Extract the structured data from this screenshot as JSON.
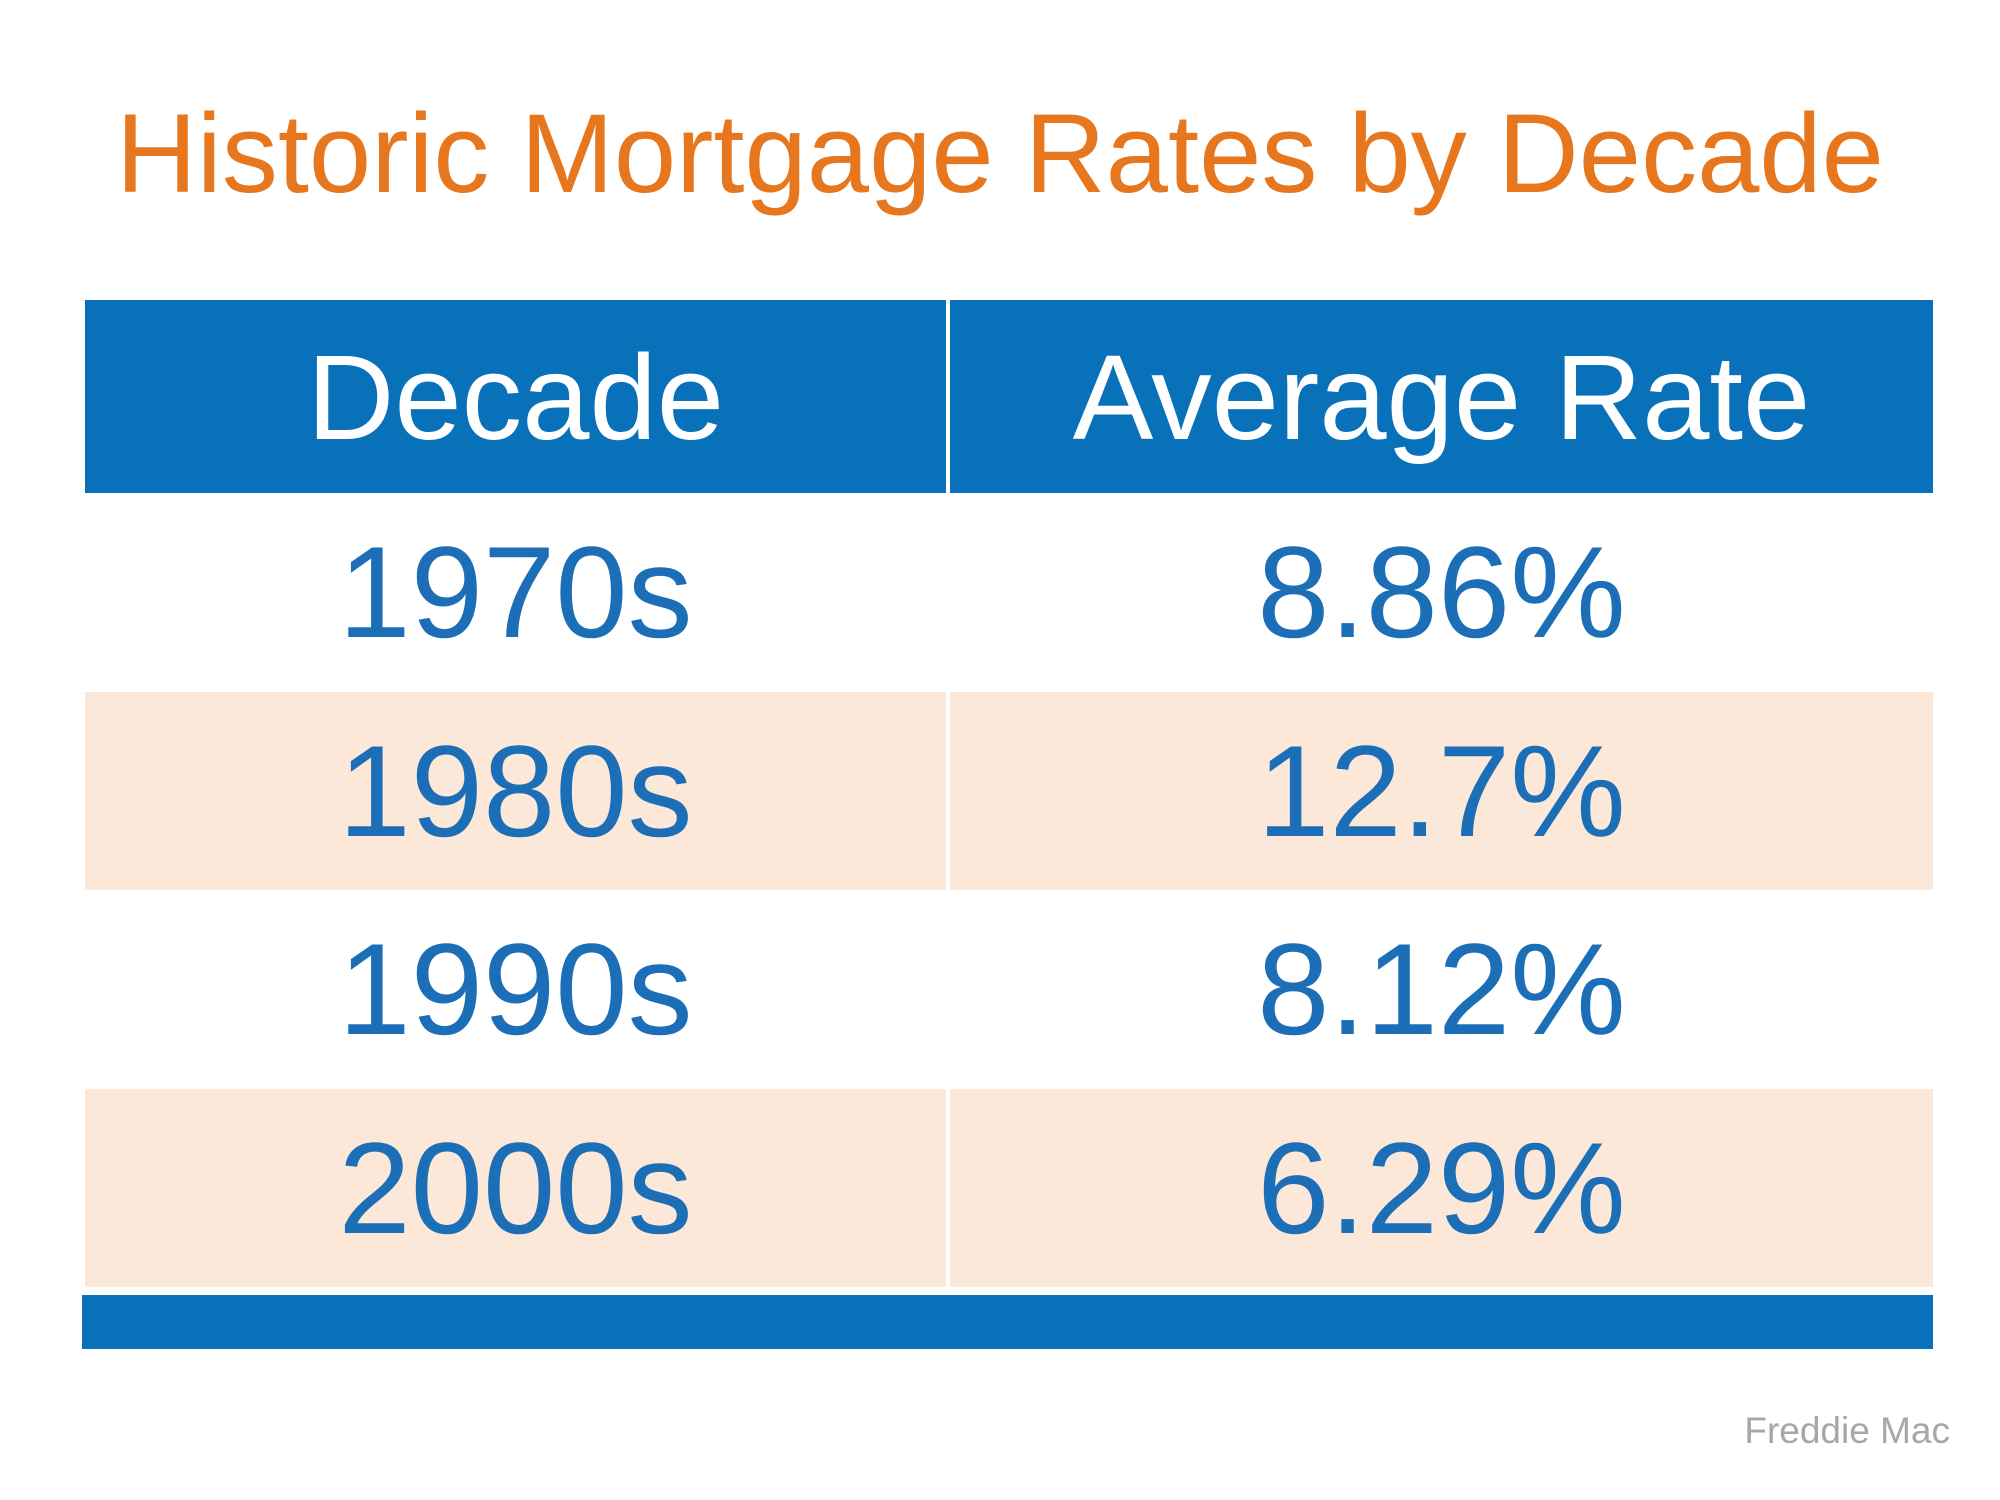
{
  "title": "Historic Mortgage Rates by Decade",
  "source": "Freddie Mac",
  "colors": {
    "accent_orange": "#E6771E",
    "header_blue": "#0971B9",
    "value_blue": "#1C6FB7",
    "row_peach": "#FBE8D9",
    "source_gray": "#A7A7A7"
  },
  "table": {
    "columns": [
      "Decade",
      "Average Rate"
    ],
    "rows": [
      {
        "decade": "1970s",
        "rate": "8.86%"
      },
      {
        "decade": "1980s",
        "rate": "12.7%"
      },
      {
        "decade": "1990s",
        "rate": "8.12%"
      },
      {
        "decade": "2000s",
        "rate": "6.29%"
      }
    ]
  },
  "chart_data": {
    "type": "table",
    "title": "Historic Mortgage Rates by Decade",
    "columns": [
      "Decade",
      "Average Rate"
    ],
    "rows": [
      [
        "1970s",
        "8.86%"
      ],
      [
        "1980s",
        "12.7%"
      ],
      [
        "1990s",
        "8.12%"
      ],
      [
        "2000s",
        "6.29%"
      ]
    ],
    "series": [
      {
        "name": "Average Rate (%)",
        "categories": [
          "1970s",
          "1980s",
          "1990s",
          "2000s"
        ],
        "values": [
          8.86,
          12.7,
          8.12,
          6.29
        ]
      }
    ],
    "source": "Freddie Mac"
  }
}
